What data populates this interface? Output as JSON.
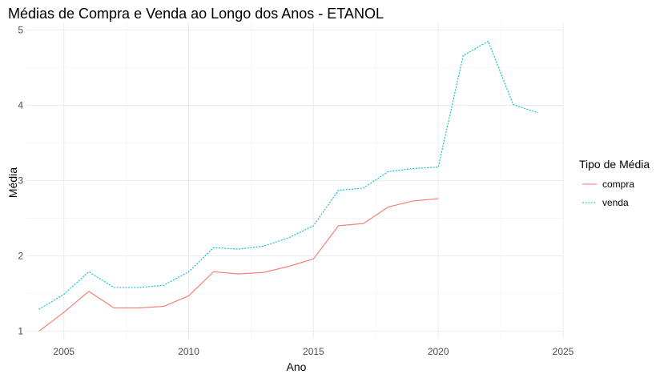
{
  "chart_data": {
    "type": "line",
    "title": "Médias de Compra e Venda ao Longo dos Anos - ETANOL",
    "xlabel": "Ano",
    "ylabel": "Média",
    "xlim": [
      2003.5,
      2025
    ],
    "ylim": [
      0.9,
      5.1
    ],
    "x_ticks": [
      2005,
      2010,
      2015,
      2020,
      2025
    ],
    "y_ticks": [
      1,
      2,
      3,
      4,
      5
    ],
    "grid": true,
    "legend": {
      "title": "Tipo de Média",
      "position": "right"
    },
    "series": [
      {
        "name": "compra",
        "color": "#F8766D",
        "dash": "solid",
        "x": [
          2004,
          2005,
          2006,
          2007,
          2008,
          2009,
          2010,
          2011,
          2012,
          2013,
          2014,
          2015,
          2016,
          2017,
          2018,
          2019,
          2020
        ],
        "values": [
          1.0,
          1.25,
          1.53,
          1.31,
          1.31,
          1.33,
          1.47,
          1.79,
          1.76,
          1.78,
          1.86,
          1.96,
          2.4,
          2.43,
          2.65,
          2.73,
          2.76
        ]
      },
      {
        "name": "venda",
        "color": "#00BFC4",
        "dash": "dotted",
        "x": [
          2004,
          2005,
          2006,
          2007,
          2008,
          2009,
          2010,
          2011,
          2012,
          2013,
          2014,
          2015,
          2016,
          2017,
          2018,
          2019,
          2020,
          2021,
          2022,
          2023,
          2024
        ],
        "values": [
          1.29,
          1.49,
          1.79,
          1.58,
          1.58,
          1.61,
          1.79,
          2.11,
          2.09,
          2.13,
          2.24,
          2.4,
          2.87,
          2.9,
          3.12,
          3.16,
          3.18,
          4.66,
          4.85,
          4.01,
          3.9
        ]
      }
    ]
  }
}
